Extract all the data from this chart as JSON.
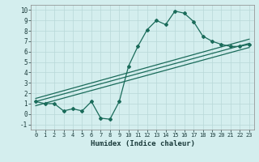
{
  "xlabel": "Humidex (Indice chaleur)",
  "ylabel": "",
  "bg_color": "#d4eeee",
  "grid_color": "#b8d8d8",
  "line_color": "#1a6b5a",
  "xlim": [
    -0.5,
    23.5
  ],
  "ylim": [
    -1.5,
    10.5
  ],
  "xticks": [
    0,
    1,
    2,
    3,
    4,
    5,
    6,
    7,
    8,
    9,
    10,
    11,
    12,
    13,
    14,
    15,
    16,
    17,
    18,
    19,
    20,
    21,
    22,
    23
  ],
  "yticks": [
    -1,
    0,
    1,
    2,
    3,
    4,
    5,
    6,
    7,
    8,
    9,
    10
  ],
  "curve_x": [
    0,
    1,
    2,
    3,
    4,
    5,
    6,
    7,
    8,
    9,
    10,
    11,
    12,
    13,
    14,
    15,
    16,
    17,
    18,
    19,
    20,
    21,
    22,
    23
  ],
  "curve_y": [
    1.2,
    1.0,
    1.0,
    0.3,
    0.5,
    0.3,
    1.2,
    -0.4,
    -0.5,
    1.2,
    4.6,
    6.5,
    8.1,
    9.0,
    8.6,
    9.9,
    9.7,
    8.9,
    7.5,
    7.0,
    6.7,
    6.5,
    6.5,
    6.7
  ],
  "line1_x": [
    0,
    23
  ],
  "line1_y": [
    1.5,
    7.2
  ],
  "line2_x": [
    0,
    23
  ],
  "line2_y": [
    1.2,
    6.8
  ],
  "line3_x": [
    0,
    23
  ],
  "line3_y": [
    0.8,
    6.4
  ]
}
